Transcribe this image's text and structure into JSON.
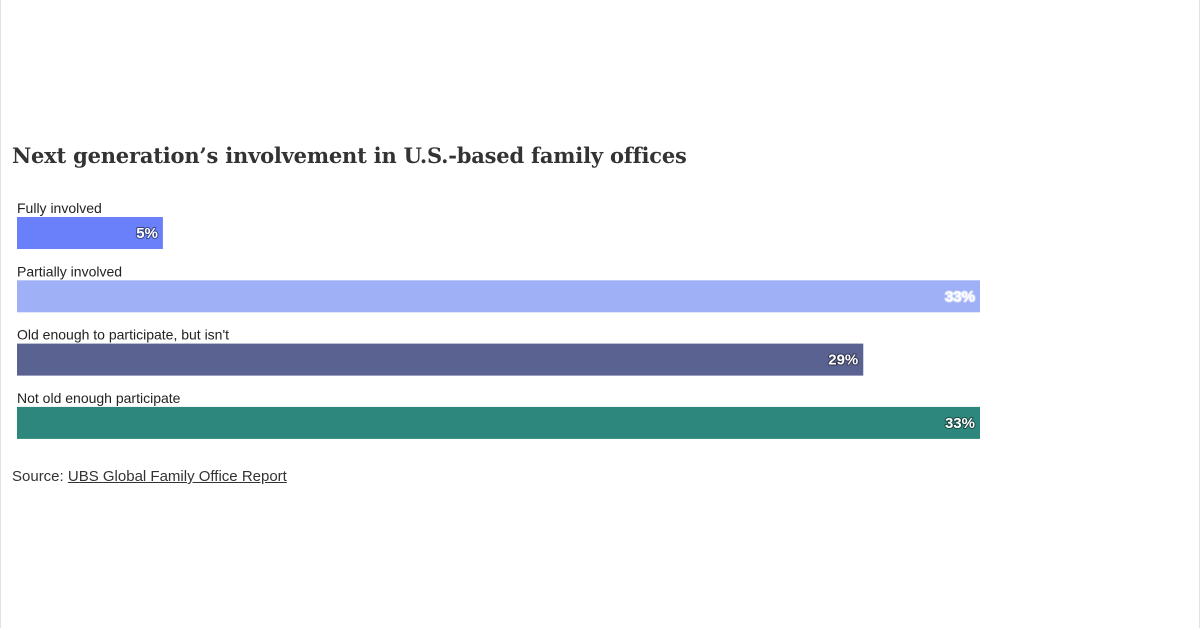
{
  "chart_data": {
    "type": "bar",
    "orientation": "horizontal",
    "title": "Next generation’s involvement in U.S.-based family offices",
    "categories": [
      "Fully involved",
      "Partially involved",
      "Old enough to participate, but isn't",
      "Not old enough participate"
    ],
    "values": [
      5,
      33,
      29,
      33
    ],
    "value_labels": [
      "5%",
      "33%",
      "29%",
      "33%"
    ],
    "colors": [
      "#6a80fa",
      "#9fb0f7",
      "#5a6292",
      "#2e877c"
    ],
    "value_label_colors": [
      "#ffffff",
      "#1f2440",
      "#ffffff",
      "#ffffff"
    ],
    "xlim": [
      0,
      33
    ],
    "grid": false,
    "legend": "none"
  },
  "source": {
    "prefix": "Source: ",
    "link_text": "UBS Global Family Office Report"
  }
}
